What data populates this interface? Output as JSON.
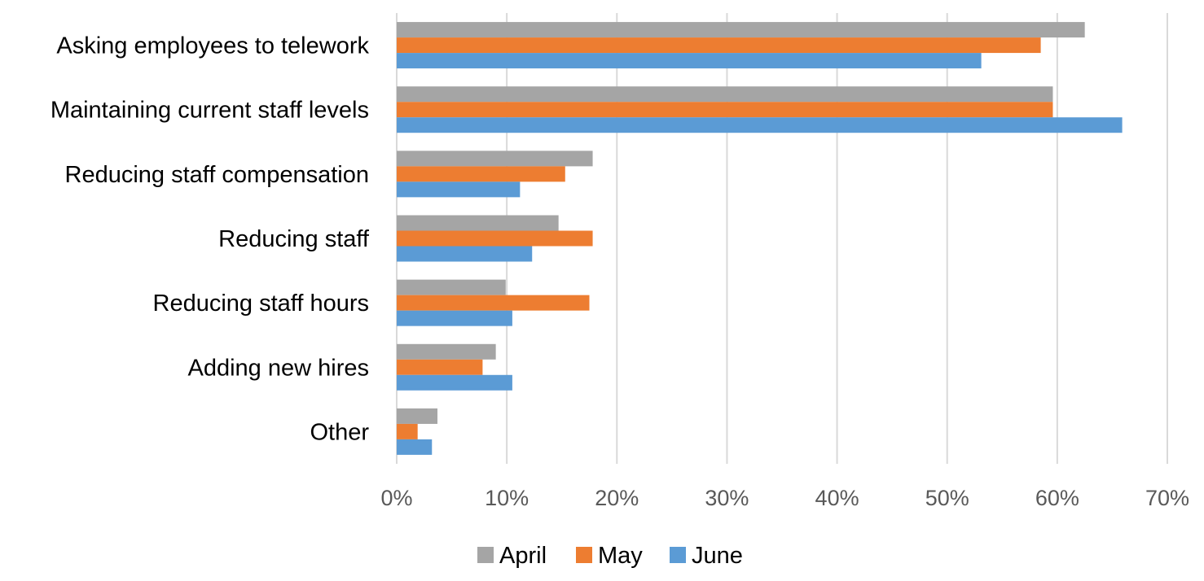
{
  "chart_data": {
    "type": "bar",
    "orientation": "horizontal",
    "categories": [
      "Asking employees to telework",
      "Maintaining current staff levels",
      "Reducing staff compensation",
      "Reducing staff",
      "Reducing staff hours",
      "Adding new hires",
      "Other"
    ],
    "series": [
      {
        "name": "April",
        "color": "#a5a5a5",
        "values": [
          62.5,
          59.6,
          17.8,
          14.7,
          9.9,
          9.0,
          3.7
        ]
      },
      {
        "name": "May",
        "color": "#ed7d31",
        "values": [
          58.5,
          59.6,
          15.3,
          17.8,
          17.5,
          7.8,
          1.9
        ]
      },
      {
        "name": "June",
        "color": "#5b9bd5",
        "values": [
          53.1,
          65.9,
          11.2,
          12.3,
          10.5,
          10.5,
          3.2
        ]
      }
    ],
    "xaxis": {
      "ticks": [
        "0%",
        "10%",
        "20%",
        "30%",
        "40%",
        "50%",
        "60%",
        "70%"
      ],
      "range": [
        0,
        70
      ]
    },
    "grid": true,
    "legend": {
      "position": "bottom",
      "entries": [
        "April",
        "May",
        "June"
      ]
    },
    "title": "",
    "xlabel": "",
    "ylabel": ""
  }
}
